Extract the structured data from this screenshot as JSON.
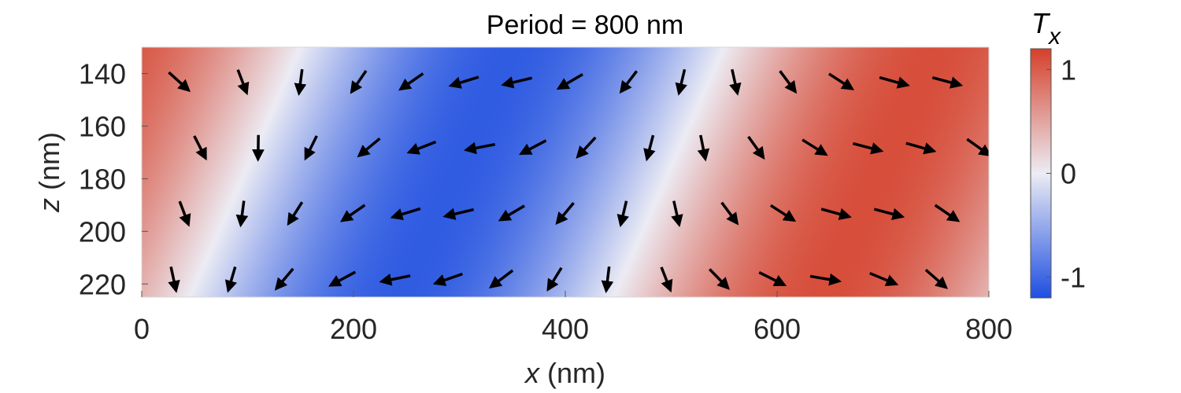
{
  "chart_data": {
    "type": "heatmap",
    "title": "Period = 800 nm",
    "xlabel": {
      "var": "x",
      "unit": " (nm)"
    },
    "ylabel": {
      "var": "z",
      "unit": " (nm)"
    },
    "xlim": [
      0,
      800
    ],
    "ylim": [
      130,
      225
    ],
    "y_reversed": true,
    "xticks": [
      0,
      200,
      400,
      600,
      800
    ],
    "xtick_labels": [
      "0",
      "200",
      "400",
      "600",
      "800"
    ],
    "yticks": [
      140,
      160,
      180,
      200,
      220
    ],
    "ytick_labels": [
      "140",
      "160",
      "180",
      "200",
      "220"
    ],
    "colorbar": {
      "title_main": "T",
      "title_sub": "x",
      "range": [
        -1.2,
        1.2
      ],
      "ticks": [
        1,
        0,
        -1
      ],
      "tick_labels": [
        "1",
        "0",
        "-1"
      ],
      "colors": {
        "low": "#1f4fe0",
        "mid": "#ececf4",
        "high": "#d5402a"
      }
    },
    "field": {
      "description_of_values": "Tx = cos(2*pi*(x + 1.1*(z-130) + 50)/800)",
      "period_nm": 800,
      "amplitude": 1.1
    },
    "arrows": {
      "rows_z": [
        143,
        168,
        193,
        218
      ],
      "cols_x": [
        [
          35,
          95,
          150,
          205,
          255,
          305,
          355,
          405,
          460,
          510,
          560,
          610,
          660,
          710,
          760
        ],
        [
          55,
          110,
          160,
          215,
          265,
          320,
          370,
          420,
          480,
          530,
          580,
          635,
          685,
          735,
          790
        ],
        [
          40,
          95,
          145,
          200,
          250,
          300,
          350,
          400,
          455,
          505,
          555,
          605,
          655,
          705,
          760
        ],
        [
          30,
          85,
          135,
          190,
          240,
          290,
          340,
          390,
          440,
          495,
          545,
          595,
          645,
          700,
          750
        ]
      ],
      "length_nm": 28
    }
  }
}
